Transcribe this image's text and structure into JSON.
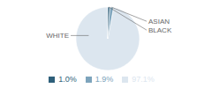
{
  "chart_data": {
    "type": "pie",
    "categories": [
      "WHITE",
      "ASIAN",
      "BLACK"
    ],
    "values": [
      97.1,
      1.9,
      1.0
    ],
    "value_labels": [
      "97.1%",
      "1.9%",
      "1.0%"
    ],
    "colors": [
      "#dce6ef",
      "#7da4bc",
      "#2e5f7a"
    ],
    "legend": "bottom"
  }
}
